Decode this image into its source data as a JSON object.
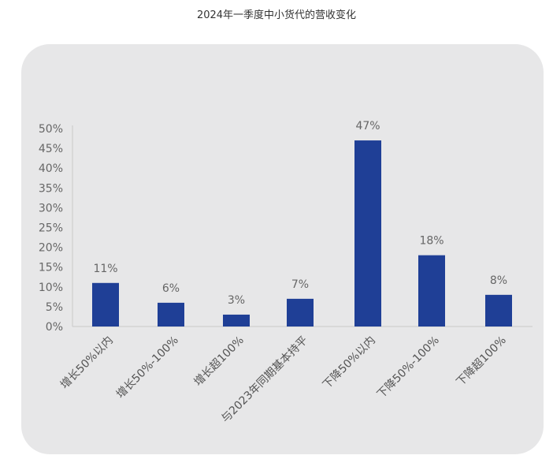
{
  "chart_data": {
    "type": "bar",
    "title": "2024年一季度中小货代的营收变化",
    "categories": [
      "增长50%以内",
      "增长50%-100%",
      "增长超100%",
      "与2023年同期基本持平",
      "下降50%以内",
      "下降50%-100%",
      "下降超100%"
    ],
    "values": [
      11,
      6,
      3,
      7,
      47,
      18,
      8
    ],
    "data_labels": [
      "11%",
      "6%",
      "3%",
      "7%",
      "47%",
      "18%",
      "8%"
    ],
    "ylim": [
      0,
      50
    ],
    "yticks": [
      "0%",
      "5%",
      "10%",
      "15%",
      "20%",
      "25%",
      "30%",
      "35%",
      "40%",
      "45%",
      "50%"
    ],
    "grid": false,
    "bar_color": "#1f3f96",
    "background_color": "#e7e7e8"
  }
}
